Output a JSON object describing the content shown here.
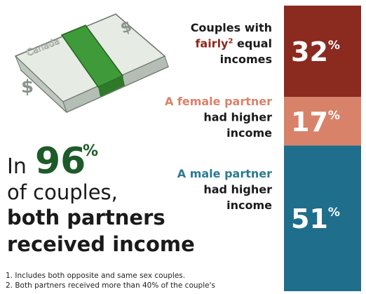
{
  "chart_data": {
    "type": "stacked_bar",
    "unit": "%",
    "illustration": {
      "brand": "Canada",
      "symbol": "$"
    },
    "headline": {
      "prefix": "In",
      "value": 96,
      "unit": "%",
      "color": "#1d5b2a",
      "lines": [
        "of couples,",
        "both partners",
        "received income"
      ]
    },
    "segments": [
      {
        "color": "#8b2a1f",
        "value": 32,
        "lines": [
          [
            {
              "text": "Couples with"
            }
          ],
          [
            {
              "text": "fairly",
              "color": "#8b2a1f"
            },
            {
              "text": "2",
              "color": "#8b2a1f",
              "sup": true
            },
            {
              "text": " equal"
            }
          ],
          [
            {
              "text": "incomes"
            }
          ]
        ]
      },
      {
        "color": "#d9826a",
        "value": 17,
        "lines": [
          [
            {
              "text": "A female partner",
              "color": "#d9826a"
            }
          ],
          [
            {
              "text": "had higher"
            }
          ],
          [
            {
              "text": "income"
            }
          ]
        ]
      },
      {
        "color": "#1f6e8c",
        "value": 51,
        "lines": [
          [
            {
              "text": "A male partner",
              "color": "#2a7a94"
            }
          ],
          [
            {
              "text": "had higher"
            }
          ],
          [
            {
              "text": "income"
            }
          ]
        ]
      }
    ],
    "footnotes": [
      "1. Includes both opposite and same sex couples.",
      "2. Both partners received more than 40% of the couple's"
    ]
  }
}
